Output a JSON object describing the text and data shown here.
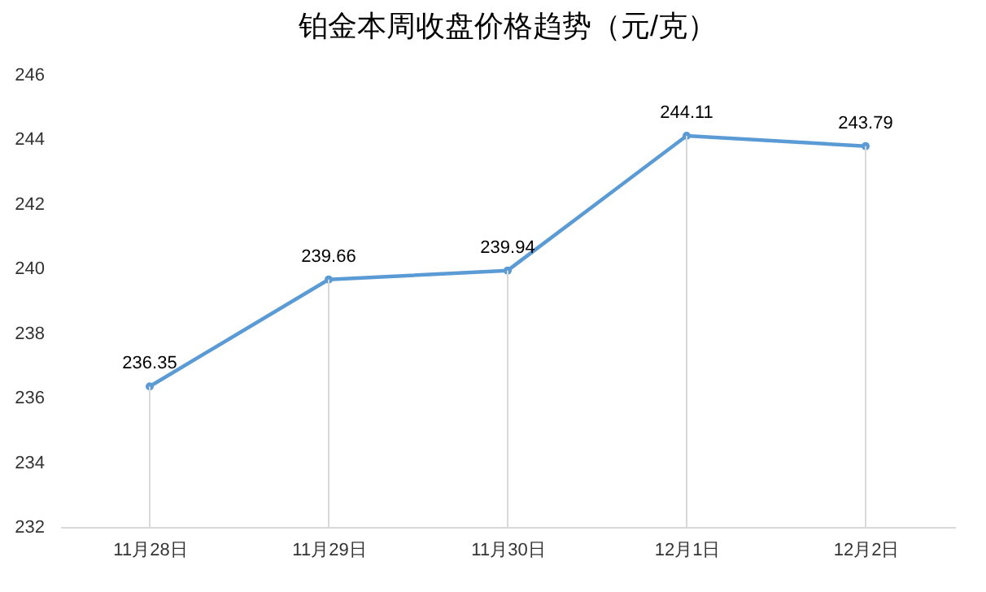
{
  "chart_data": {
    "type": "line",
    "title": "铂金本周收盘价格趋势（元/克）",
    "categories": [
      "11月28日",
      "11月29日",
      "11月30日",
      "12月1日",
      "12月2日"
    ],
    "series": [
      {
        "color": "#5b9bd5",
        "values": [
          236.35,
          239.66,
          239.94,
          244.11,
          243.79
        ]
      }
    ],
    "ylim": [
      232,
      246
    ],
    "yticks": [
      232,
      234,
      236,
      238,
      240,
      242,
      244,
      246
    ],
    "grid": "x",
    "data_labels": true,
    "marker": "circle",
    "legend": false
  }
}
